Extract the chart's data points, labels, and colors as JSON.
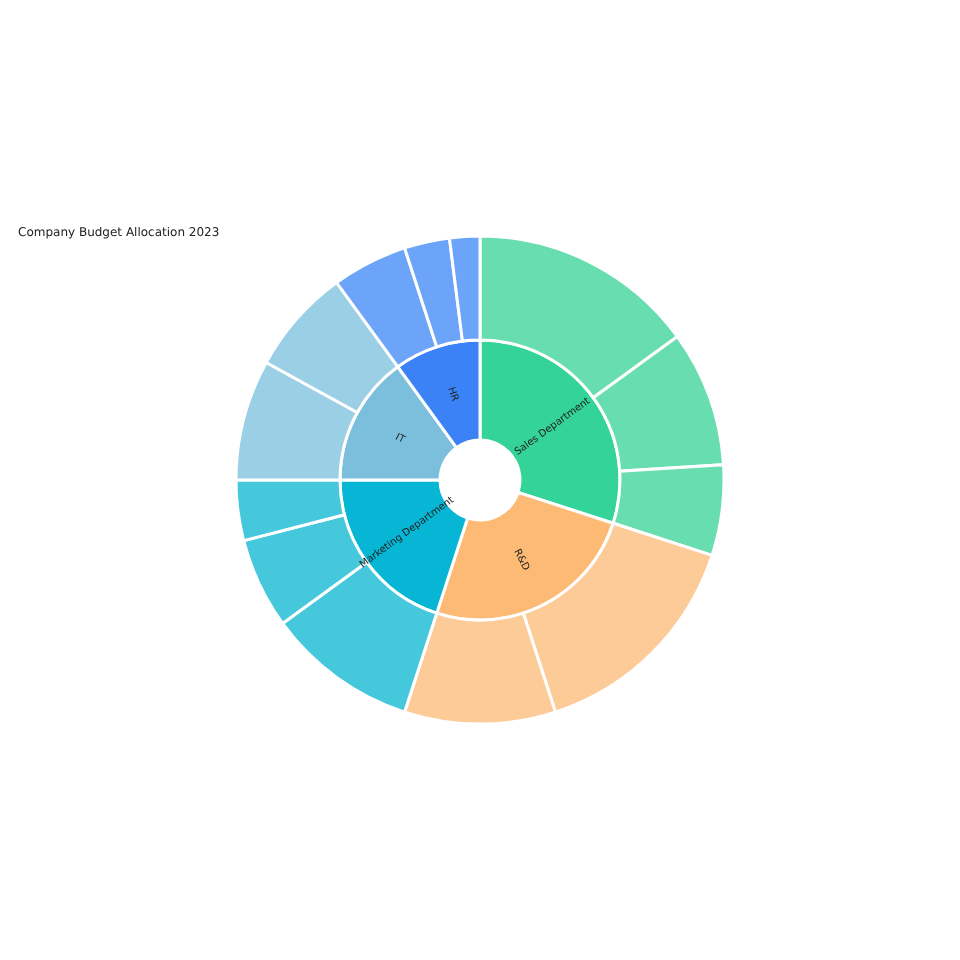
{
  "chart_data": [
    {
      "type": "donut",
      "title": "Company Budget Allocation 2023",
      "categories": [
        "Sales Department",
        "R&D",
        "Marketing Department",
        "IT",
        "HR"
      ],
      "values": [
        30,
        25,
        20,
        15,
        10
      ],
      "colors": [
        "#34d399",
        "#fdba74",
        "#06b6d4",
        "#7bbfdc",
        "#3b82f6"
      ]
    },
    {
      "type": "donut",
      "categories": [
        null,
        null,
        null,
        null,
        null,
        null,
        null,
        null,
        null,
        null,
        null,
        null,
        null
      ],
      "values": [
        15,
        9,
        6,
        15,
        10,
        10,
        6,
        4,
        8,
        7,
        5,
        3,
        2
      ],
      "colors": [
        "#68deb0",
        "#68deb0",
        "#68deb0",
        "#fdcb98",
        "#fdcb98",
        "#45c8dc",
        "#45c8dc",
        "#45c8dc",
        "#9acfe6",
        "#9acfe6",
        "#6ba4f8",
        "#6ba4f8",
        "#6ba4f8"
      ]
    }
  ]
}
